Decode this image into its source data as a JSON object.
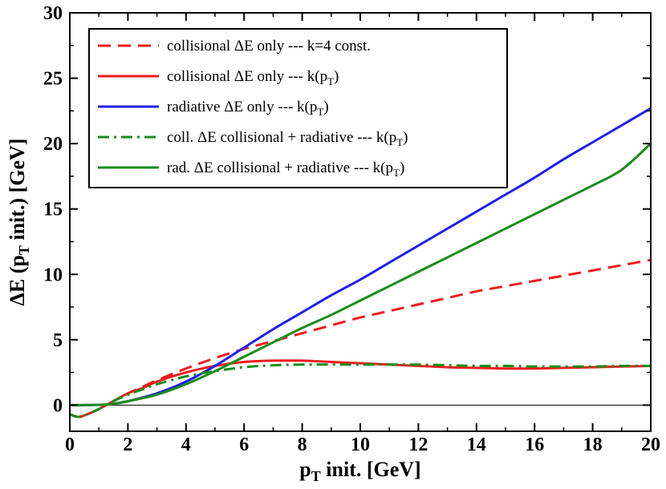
{
  "chart_data": {
    "type": "line",
    "title": "",
    "xlabel": "p_T init. [GeV]",
    "ylabel": "ΔE (p_T init.) [GeV]",
    "xlim": [
      0,
      20
    ],
    "ylim": [
      -2,
      30
    ],
    "xticks": [
      0,
      2,
      4,
      6,
      8,
      10,
      12,
      14,
      16,
      18,
      20
    ],
    "yticks": [
      0,
      5,
      10,
      15,
      20,
      25,
      30
    ],
    "reference_line_y": 0,
    "grid": false,
    "legend_position": "top-left",
    "series": [
      {
        "name": "collisional ΔE only --- k=4 const.",
        "color": "#ee1c1c",
        "style": "dashed",
        "x": [
          0,
          0.3,
          0.6,
          1,
          1.5,
          2,
          2.5,
          3,
          4,
          5,
          6,
          7,
          8,
          9,
          10,
          11,
          12,
          13,
          14,
          15,
          16,
          17,
          18,
          19,
          20
        ],
        "y": [
          -0.7,
          -0.9,
          -0.7,
          -0.3,
          0.3,
          0.9,
          1.4,
          1.9,
          2.8,
          3.6,
          4.3,
          4.9,
          5.5,
          6.1,
          6.7,
          7.2,
          7.7,
          8.2,
          8.7,
          9.1,
          9.5,
          9.9,
          10.3,
          10.7,
          11.1
        ]
      },
      {
        "name": "collisional ΔE only --- k(p_T)",
        "color": "#ee1c1c",
        "style": "solid",
        "x": [
          0,
          0.3,
          0.6,
          1,
          1.5,
          2,
          2.5,
          3,
          4,
          5,
          6,
          7,
          8,
          9,
          10,
          11,
          12,
          13,
          14,
          15,
          16,
          17,
          18,
          19,
          20
        ],
        "y": [
          -0.7,
          -0.9,
          -0.7,
          -0.3,
          0.3,
          0.9,
          1.3,
          1.8,
          2.5,
          3.0,
          3.3,
          3.4,
          3.4,
          3.3,
          3.2,
          3.1,
          3.0,
          2.9,
          2.85,
          2.8,
          2.8,
          2.85,
          2.9,
          2.95,
          3.0
        ]
      },
      {
        "name": "radiative ΔE only --- k(p_T)",
        "color": "#1f1fe6",
        "style": "solid",
        "x": [
          0,
          1,
          1.5,
          2,
          3,
          4,
          5,
          6,
          7,
          8,
          9,
          10,
          11,
          12,
          13,
          14,
          15,
          16,
          17,
          18,
          19,
          20
        ],
        "y": [
          0,
          0.02,
          0.1,
          0.3,
          0.9,
          1.8,
          3.0,
          4.4,
          5.8,
          7.1,
          8.4,
          9.6,
          10.9,
          12.2,
          13.5,
          14.8,
          16.1,
          17.4,
          18.8,
          20.1,
          21.4,
          22.7
        ]
      },
      {
        "name": "coll. ΔE collisional + radiative --- k(p_T)",
        "color": "#1a8c1a",
        "style": "dashdot",
        "x": [
          0,
          0.3,
          0.6,
          1,
          1.5,
          2,
          2.5,
          3,
          4,
          5,
          6,
          7,
          8,
          9,
          10,
          11,
          12,
          13,
          14,
          15,
          16,
          17,
          18,
          19,
          20
        ],
        "y": [
          -0.7,
          -0.9,
          -0.7,
          -0.3,
          0.3,
          0.8,
          1.2,
          1.6,
          2.2,
          2.6,
          2.9,
          3.05,
          3.1,
          3.1,
          3.1,
          3.1,
          3.1,
          3.05,
          3.0,
          3.0,
          2.95,
          2.95,
          2.95,
          3.0,
          3.0
        ]
      },
      {
        "name": "rad. ΔE collisional + radiative --- k(p_T)",
        "color": "#1a8c1a",
        "style": "solid",
        "x": [
          0,
          1,
          1.5,
          2,
          3,
          4,
          5,
          6,
          7,
          8,
          9,
          10,
          11,
          12,
          13,
          14,
          15,
          16,
          17,
          18,
          19,
          20
        ],
        "y": [
          0,
          0.02,
          0.1,
          0.3,
          0.8,
          1.6,
          2.6,
          3.7,
          4.8,
          5.9,
          6.9,
          8.0,
          9.1,
          10.2,
          11.3,
          12.4,
          13.5,
          14.6,
          15.7,
          16.8,
          18.0,
          20.0
        ]
      }
    ],
    "legend_labels": [
      {
        "main": "collisional ΔE only --- k=4 const.",
        "sub": "",
        "tail": ""
      },
      {
        "main": "collisional ΔE only --- k(p",
        "sub": "T",
        "tail": ")"
      },
      {
        "main": "radiative ΔE only --- k(p",
        "sub": "T",
        "tail": ")"
      },
      {
        "main": "coll. ΔE collisional + radiative --- k(p",
        "sub": "T",
        "tail": ")"
      },
      {
        "main": "rad. ΔE collisional + radiative --- k(p",
        "sub": "T",
        "tail": ")"
      }
    ],
    "xlabel_parts": {
      "main": "p",
      "sub": "T",
      "tail": " init. [GeV]"
    },
    "ylabel_parts": {
      "main": "ΔE (p",
      "sub": "T",
      "tail": " init.) [GeV]"
    }
  }
}
